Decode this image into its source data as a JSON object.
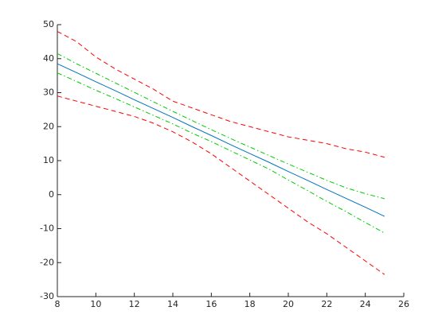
{
  "chart_data": {
    "type": "line",
    "x": [
      8,
      9,
      10,
      11,
      12,
      13,
      14,
      15,
      16,
      17,
      18,
      19,
      20,
      21,
      22,
      23,
      24,
      25
    ],
    "series": [
      {
        "color": "#ff0000",
        "dash": "dashed",
        "values": [
          48,
          45,
          40.5,
          37,
          34,
          31,
          27.5,
          25.5,
          23.5,
          21.5,
          20,
          18.5,
          17,
          16,
          15,
          13.5,
          12.5,
          11
        ]
      },
      {
        "color": "#00cc00",
        "dash": "dashdot",
        "values": [
          41.5,
          38.5,
          35.7,
          32.9,
          30.1,
          27.3,
          24.5,
          21.8,
          19.1,
          16.5,
          14,
          11.5,
          9,
          6.6,
          4.2,
          2,
          0.3,
          -1.2
        ]
      },
      {
        "color": "#0072bd",
        "dash": "solid",
        "values": [
          38.5,
          35.9,
          33.2,
          30.6,
          27.9,
          25.3,
          22.7,
          20,
          17.4,
          14.7,
          12.1,
          9.5,
          6.8,
          4.2,
          1.5,
          -1.1,
          -3.7,
          -6.4
        ]
      },
      {
        "color": "#00cc00",
        "dash": "dashdot",
        "values": [
          35.8,
          33.3,
          30.7,
          28.3,
          25.8,
          23.3,
          20.8,
          18.1,
          15.6,
          12.9,
          10.2,
          7.5,
          4.3,
          1.2,
          -2,
          -5,
          -8.2,
          -11.3
        ]
      },
      {
        "color": "#ff0000",
        "dash": "dashed",
        "values": [
          29,
          27.5,
          26,
          24.5,
          23,
          21,
          18.5,
          15.5,
          12,
          8,
          4,
          0,
          -4,
          -8,
          -11.5,
          -15.5,
          -19.5,
          -23.5
        ]
      }
    ],
    "xlim": [
      8,
      26
    ],
    "xticks": [
      8,
      10,
      12,
      14,
      16,
      18,
      20,
      22,
      24,
      26
    ],
    "ylim": [
      -30,
      50
    ],
    "yticks": [
      -30,
      -20,
      -10,
      0,
      10,
      20,
      30,
      40,
      50
    ]
  }
}
